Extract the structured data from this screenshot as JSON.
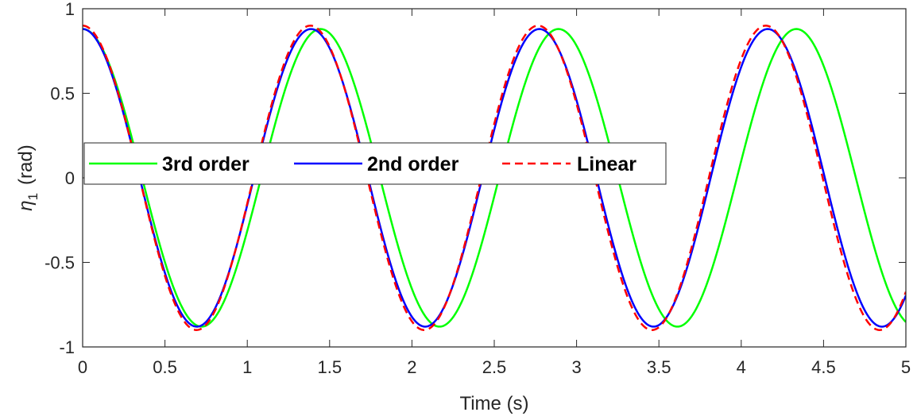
{
  "chart_data": {
    "type": "line",
    "title": "",
    "xlabel": "Time (s)",
    "ylabel_symbol": "η",
    "ylabel_subscript": "1",
    "ylabel_unit": "(rad)",
    "xlim": [
      0,
      5
    ],
    "ylim": [
      -1,
      1
    ],
    "xticks": [
      "0",
      "0.5",
      "1",
      "1.5",
      "2",
      "2.5",
      "3",
      "3.5",
      "4",
      "4.5",
      "5"
    ],
    "yticks": [
      "-1",
      "-0.5",
      "0",
      "0.5",
      "1"
    ],
    "grid": false,
    "legend_position": "center-left",
    "series": [
      {
        "name": "3rd order",
        "color": "#00ff00",
        "style": "solid",
        "model": {
          "amplitude": 0.88,
          "offset": 0.0,
          "period": 1.445
        }
      },
      {
        "name": "2nd order",
        "color": "#0000ff",
        "style": "solid",
        "model": {
          "amplitude": 0.88,
          "offset": 0.0,
          "period": 1.387
        }
      },
      {
        "name": "Linear",
        "color": "#ff0000",
        "style": "dashed",
        "model": {
          "amplitude": 0.9,
          "offset": 0.0,
          "period": 1.383
        }
      }
    ]
  }
}
